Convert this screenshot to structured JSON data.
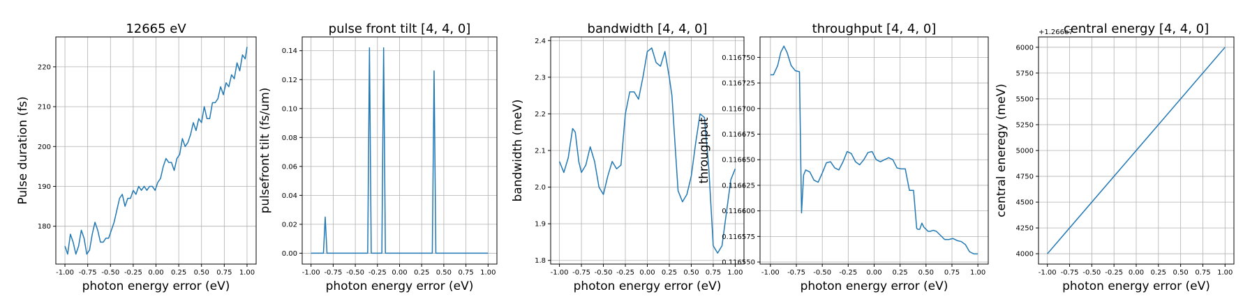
{
  "colors": {
    "line": "#1f77b4",
    "grid": "#b0b0b0"
  },
  "chart_data": [
    {
      "type": "line",
      "title": "12665 eV",
      "xlabel": "photon energy error (eV)",
      "ylabel": "Pulse duration (fs)",
      "xlim": [
        -1.1,
        1.1
      ],
      "ylim": [
        170.5,
        227.5
      ],
      "xticks": [
        -1.0,
        -0.75,
        -0.5,
        -0.25,
        0.0,
        0.25,
        0.5,
        0.75,
        1.0
      ],
      "xtick_labels": [
        "-1.00",
        "-0.75",
        "-0.50",
        "-0.25",
        "0.00",
        "0.25",
        "0.50",
        "0.75",
        "1.00"
      ],
      "yticks": [
        180,
        190,
        200,
        210,
        220
      ],
      "ytick_labels": [
        "180",
        "190",
        "200",
        "210",
        "220"
      ],
      "offset_text": "",
      "grid": true,
      "x": [
        -1.0,
        -0.97,
        -0.94,
        -0.91,
        -0.88,
        -0.85,
        -0.82,
        -0.79,
        -0.76,
        -0.73,
        -0.7,
        -0.67,
        -0.64,
        -0.61,
        -0.58,
        -0.55,
        -0.52,
        -0.49,
        -0.46,
        -0.43,
        -0.4,
        -0.37,
        -0.34,
        -0.31,
        -0.28,
        -0.25,
        -0.22,
        -0.19,
        -0.16,
        -0.13,
        -0.1,
        -0.07,
        -0.04,
        -0.01,
        0.02,
        0.05,
        0.08,
        0.11,
        0.14,
        0.17,
        0.2,
        0.23,
        0.26,
        0.29,
        0.32,
        0.35,
        0.38,
        0.41,
        0.44,
        0.47,
        0.5,
        0.53,
        0.56,
        0.59,
        0.62,
        0.65,
        0.68,
        0.71,
        0.74,
        0.77,
        0.8,
        0.83,
        0.86,
        0.89,
        0.92,
        0.95,
        0.98,
        1.0
      ],
      "y": [
        175,
        173,
        178,
        176,
        173,
        175,
        179,
        177,
        173,
        174,
        178,
        181,
        179,
        176,
        176,
        177,
        177,
        179,
        181,
        184,
        187,
        188,
        185,
        187,
        187,
        189,
        188,
        190,
        189,
        190,
        189,
        190,
        190,
        189,
        191,
        192,
        195,
        197,
        196,
        196,
        194,
        197,
        198,
        202,
        200,
        201,
        203,
        206,
        204,
        207,
        206,
        210,
        207,
        207,
        211,
        211,
        212,
        215,
        213,
        216,
        215,
        218,
        217,
        221,
        219,
        223,
        222,
        225
      ]
    },
    {
      "type": "line",
      "title": "pulse front tilt [4, 4, 0]",
      "xlabel": "photon energy error (eV)",
      "ylabel": "pulsefront tilt (fs/um)",
      "xlim": [
        -1.1,
        1.1
      ],
      "ylim": [
        -0.0075,
        0.1495
      ],
      "xticks": [
        -1.0,
        -0.75,
        -0.5,
        -0.25,
        0.0,
        0.25,
        0.5,
        0.75,
        1.0
      ],
      "xtick_labels": [
        "-1.00",
        "-0.75",
        "-0.50",
        "-0.25",
        "0.00",
        "0.25",
        "0.50",
        "0.75",
        "1.00"
      ],
      "yticks": [
        0.0,
        0.02,
        0.04,
        0.06,
        0.08,
        0.1,
        0.12,
        0.14
      ],
      "ytick_labels": [
        "0.00",
        "0.02",
        "0.04",
        "0.06",
        "0.08",
        "0.10",
        "0.12",
        "0.14"
      ],
      "offset_text": "",
      "grid": true,
      "x": [
        -1.0,
        -0.86,
        -0.84,
        -0.82,
        -0.36,
        -0.34,
        -0.32,
        -0.2,
        -0.18,
        -0.16,
        0.37,
        0.39,
        0.41,
        1.0
      ],
      "y": [
        0.0,
        0.0,
        0.025,
        0.0,
        0.0,
        0.142,
        0.0,
        0.0,
        0.142,
        0.0,
        0.0,
        0.126,
        0.0,
        0.0
      ]
    },
    {
      "type": "line",
      "title": "bandwidth [4, 4, 0]",
      "xlabel": "photon energy error (eV)",
      "ylabel": "bandwidth (meV)",
      "xlim": [
        -1.1,
        1.1
      ],
      "ylim": [
        1.79,
        2.41
      ],
      "xticks": [
        -1.0,
        -0.75,
        -0.5,
        -0.25,
        0.0,
        0.25,
        0.5,
        0.75,
        1.0
      ],
      "xtick_labels": [
        "-1.00",
        "-0.75",
        "-0.50",
        "-0.25",
        "0.00",
        "0.25",
        "0.50",
        "0.75",
        "1.00"
      ],
      "yticks": [
        1.8,
        1.9,
        2.0,
        2.1,
        2.2,
        2.3,
        2.4
      ],
      "ytick_labels": [
        "1.8",
        "1.9",
        "2.0",
        "2.1",
        "2.2",
        "2.3",
        "2.4"
      ],
      "offset_text": "",
      "grid": true,
      "x": [
        -1.0,
        -0.95,
        -0.9,
        -0.85,
        -0.82,
        -0.78,
        -0.75,
        -0.7,
        -0.65,
        -0.6,
        -0.55,
        -0.5,
        -0.45,
        -0.4,
        -0.35,
        -0.3,
        -0.25,
        -0.2,
        -0.15,
        -0.1,
        -0.05,
        0.0,
        0.05,
        0.1,
        0.15,
        0.2,
        0.25,
        0.28,
        0.32,
        0.35,
        0.4,
        0.45,
        0.5,
        0.55,
        0.6,
        0.65,
        0.7,
        0.75,
        0.8,
        0.85,
        0.9,
        0.95,
        1.0
      ],
      "y": [
        2.07,
        2.04,
        2.08,
        2.16,
        2.15,
        2.07,
        2.04,
        2.06,
        2.11,
        2.07,
        2.0,
        1.98,
        2.03,
        2.07,
        2.05,
        2.06,
        2.2,
        2.26,
        2.26,
        2.24,
        2.3,
        2.37,
        2.38,
        2.34,
        2.33,
        2.37,
        2.3,
        2.25,
        2.1,
        1.99,
        1.96,
        1.98,
        2.03,
        2.12,
        2.2,
        2.19,
        2.05,
        1.84,
        1.82,
        1.84,
        1.93,
        2.02,
        2.05
      ]
    },
    {
      "type": "line",
      "title": "throughput [4, 4, 0]",
      "xlabel": "photon energy error (eV)",
      "ylabel": "throughput",
      "xlim": [
        -1.1,
        1.1
      ],
      "ylim": [
        0.116548,
        0.11677
      ],
      "xticks": [
        -1.0,
        -0.75,
        -0.5,
        -0.25,
        0.0,
        0.25,
        0.5,
        0.75,
        1.0
      ],
      "xtick_labels": [
        "-1.00",
        "-0.75",
        "-0.50",
        "-0.25",
        "0.00",
        "0.25",
        "0.50",
        "0.75",
        "1.00"
      ],
      "yticks": [
        0.11655,
        0.116575,
        0.1166,
        0.116625,
        0.11665,
        0.116675,
        0.1167,
        0.116725,
        0.11675
      ],
      "ytick_labels": [
        "0.116550",
        "0.116575",
        "0.116600",
        "0.116625",
        "0.116650",
        "0.116675",
        "0.116700",
        "0.116725",
        "0.116750"
      ],
      "offset_text": "",
      "grid": true,
      "x": [
        -1.0,
        -0.97,
        -0.93,
        -0.9,
        -0.87,
        -0.84,
        -0.8,
        -0.76,
        -0.72,
        -0.7,
        -0.68,
        -0.66,
        -0.62,
        -0.58,
        -0.54,
        -0.5,
        -0.46,
        -0.42,
        -0.38,
        -0.34,
        -0.3,
        -0.26,
        -0.22,
        -0.18,
        -0.14,
        -0.1,
        -0.06,
        -0.02,
        0.02,
        0.06,
        0.1,
        0.14,
        0.18,
        0.22,
        0.26,
        0.3,
        0.34,
        0.38,
        0.41,
        0.42,
        0.43,
        0.44,
        0.46,
        0.48,
        0.5,
        0.52,
        0.54,
        0.57,
        0.6,
        0.64,
        0.68,
        0.72,
        0.76,
        0.8,
        0.84,
        0.88,
        0.92,
        0.96,
        1.0
      ],
      "y": [
        0.116733,
        0.116733,
        0.116742,
        0.116755,
        0.116761,
        0.116755,
        0.116742,
        0.116737,
        0.116736,
        0.116598,
        0.116635,
        0.11664,
        0.116638,
        0.11663,
        0.116628,
        0.116637,
        0.116647,
        0.116648,
        0.116642,
        0.11664,
        0.116648,
        0.116658,
        0.116656,
        0.116648,
        0.116645,
        0.11665,
        0.116657,
        0.116658,
        0.11665,
        0.116648,
        0.11665,
        0.116652,
        0.11665,
        0.116642,
        0.116641,
        0.116641,
        0.11662,
        0.11662,
        0.116583,
        0.116582,
        0.116582,
        0.116582,
        0.116588,
        0.116584,
        0.116582,
        0.11658,
        0.11658,
        0.116581,
        0.11658,
        0.116576,
        0.116572,
        0.116572,
        0.116573,
        0.116571,
        0.11657,
        0.116567,
        0.11656,
        0.116558,
        0.116558
      ]
    },
    {
      "type": "line",
      "title": "central energy [4, 4, 0]",
      "xlabel": "photon energy error (eV)",
      "ylabel": "central eneregy (meV)",
      "xlim": [
        -1.1,
        1.1
      ],
      "ylim": [
        3900,
        6100
      ],
      "xticks": [
        -1.0,
        -0.75,
        -0.5,
        -0.25,
        0.0,
        0.25,
        0.5,
        0.75,
        1.0
      ],
      "xtick_labels": [
        "-1.00",
        "-0.75",
        "-0.50",
        "-0.25",
        "0.00",
        "0.25",
        "0.50",
        "0.75",
        "1.00"
      ],
      "yticks": [
        4000,
        4250,
        4500,
        4750,
        5000,
        5250,
        5500,
        5750,
        6000
      ],
      "ytick_labels": [
        "4000",
        "4250",
        "4500",
        "4750",
        "5000",
        "5250",
        "5500",
        "5750",
        "6000"
      ],
      "offset_text": "+1.266e7",
      "grid": true,
      "x": [
        -1.0,
        1.0
      ],
      "y": [
        4000,
        6000
      ]
    }
  ]
}
